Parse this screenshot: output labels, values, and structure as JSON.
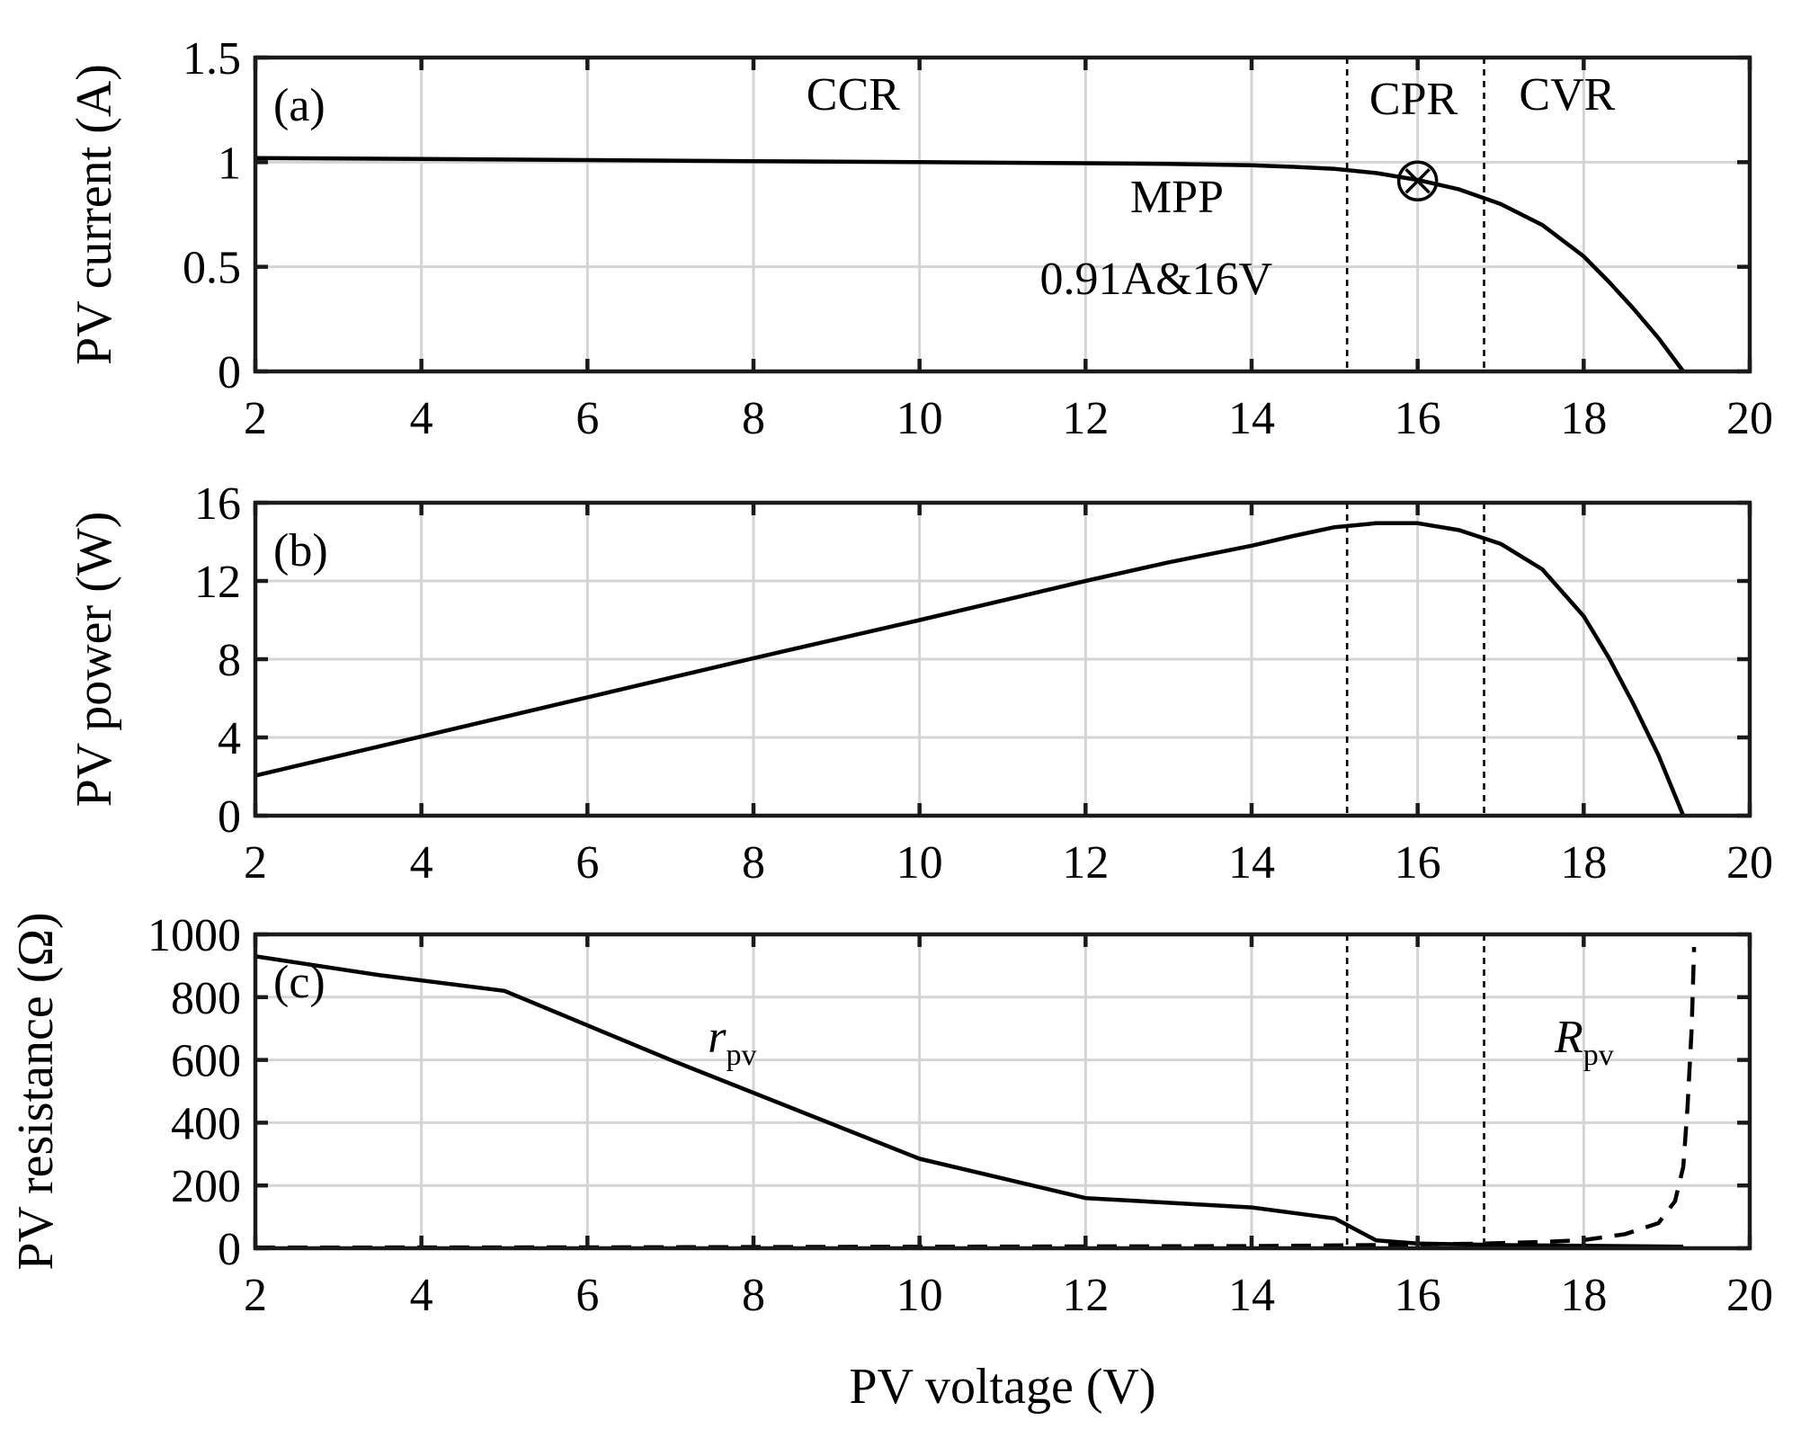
{
  "chart_data": [
    {
      "type": "line",
      "panel_label": "(a)",
      "ylabel": "PV current (A)",
      "xlim": [
        2,
        20
      ],
      "ylim": [
        0,
        1.5
      ],
      "xticks": [
        2,
        4,
        6,
        8,
        10,
        12,
        14,
        16,
        18,
        20
      ],
      "yticks": [
        0,
        0.5,
        1,
        1.5
      ],
      "ytick_labels": [
        "0",
        "0.5",
        "1",
        "1.5"
      ],
      "grid": true,
      "region_boundaries": [
        15.15,
        16.8
      ],
      "series": [
        {
          "name": "PV current",
          "style": "solid",
          "x": [
            2,
            4,
            6,
            8,
            10,
            12,
            13,
            14,
            14.5,
            15,
            15.5,
            16,
            16.5,
            17,
            17.5,
            18,
            18.3,
            18.6,
            18.9,
            19.2
          ],
          "y": [
            1.02,
            1.015,
            1.01,
            1.005,
            1.0,
            0.995,
            0.992,
            0.985,
            0.978,
            0.968,
            0.948,
            0.915,
            0.87,
            0.8,
            0.7,
            0.55,
            0.43,
            0.3,
            0.16,
            0.0
          ]
        }
      ],
      "annotations": [
        {
          "text": "CCR",
          "x": 9.2,
          "y": 1.25
        },
        {
          "text": "CPR",
          "x": 15.95,
          "y": 1.23
        },
        {
          "text": "CVR",
          "x": 17.8,
          "y": 1.25
        },
        {
          "text": "MPP",
          "x": 13.1,
          "y": 0.76
        },
        {
          "text": "0.91A&16V",
          "x": 12.85,
          "y": 0.37
        }
      ],
      "marker": {
        "label": "MPP",
        "x": 16,
        "y": 0.91,
        "symbol": "circle-x"
      }
    },
    {
      "type": "line",
      "panel_label": "(b)",
      "ylabel": "PV power (W)",
      "xlim": [
        2,
        20
      ],
      "ylim": [
        0,
        16
      ],
      "xticks": [
        2,
        4,
        6,
        8,
        10,
        12,
        14,
        16,
        18,
        20
      ],
      "yticks": [
        0,
        4,
        8,
        12,
        16
      ],
      "ytick_labels": [
        "0",
        "4",
        "8",
        "12",
        "16"
      ],
      "grid": true,
      "region_boundaries": [
        15.15,
        16.8
      ],
      "series": [
        {
          "name": "PV power",
          "style": "solid",
          "x": [
            2,
            4,
            6,
            8,
            10,
            12,
            13,
            14,
            14.5,
            15,
            15.5,
            16,
            16.5,
            17,
            17.5,
            18,
            18.3,
            18.6,
            18.9,
            19.2
          ],
          "y": [
            2.05,
            4.05,
            6.05,
            8.05,
            10.0,
            12.0,
            12.95,
            13.8,
            14.3,
            14.75,
            14.95,
            14.95,
            14.6,
            13.9,
            12.6,
            10.2,
            8.1,
            5.7,
            3.1,
            0.0
          ]
        }
      ]
    },
    {
      "type": "line",
      "panel_label": "(c)",
      "ylabel": "PV resistance (Ω)",
      "xlabel": "PV voltage (V)",
      "xlim": [
        2,
        20
      ],
      "ylim": [
        0,
        1000
      ],
      "xticks": [
        2,
        4,
        6,
        8,
        10,
        12,
        14,
        16,
        18,
        20
      ],
      "yticks": [
        0,
        200,
        400,
        600,
        800,
        1000
      ],
      "ytick_labels": [
        "0",
        "200",
        "400",
        "600",
        "800",
        "1000"
      ],
      "grid": true,
      "region_boundaries": [
        15.15,
        16.8
      ],
      "series": [
        {
          "name": "r_pv",
          "style": "solid",
          "x": [
            2,
            3.5,
            5,
            7,
            10,
            12,
            14,
            15,
            15.5,
            16,
            17,
            18,
            19.2
          ],
          "y": [
            930,
            870,
            820,
            600,
            285,
            160,
            130,
            95,
            25,
            15,
            10,
            8,
            5
          ]
        },
        {
          "name": "R_pv",
          "style": "dashed",
          "x": [
            2,
            6,
            10,
            14,
            15.5,
            16,
            16.8,
            17.5,
            18,
            18.5,
            18.9,
            19.1,
            19.2,
            19.25,
            19.3,
            19.33
          ],
          "y": [
            2,
            3,
            5,
            7,
            10,
            12,
            15,
            20,
            26,
            45,
            80,
            150,
            260,
            450,
            700,
            960
          ]
        }
      ],
      "annotations": [
        {
          "text": "r",
          "sub": "pv",
          "x": 7.45,
          "y": 625
        },
        {
          "text": "R",
          "sub": "pv",
          "x": 17.65,
          "y": 625
        }
      ]
    }
  ]
}
